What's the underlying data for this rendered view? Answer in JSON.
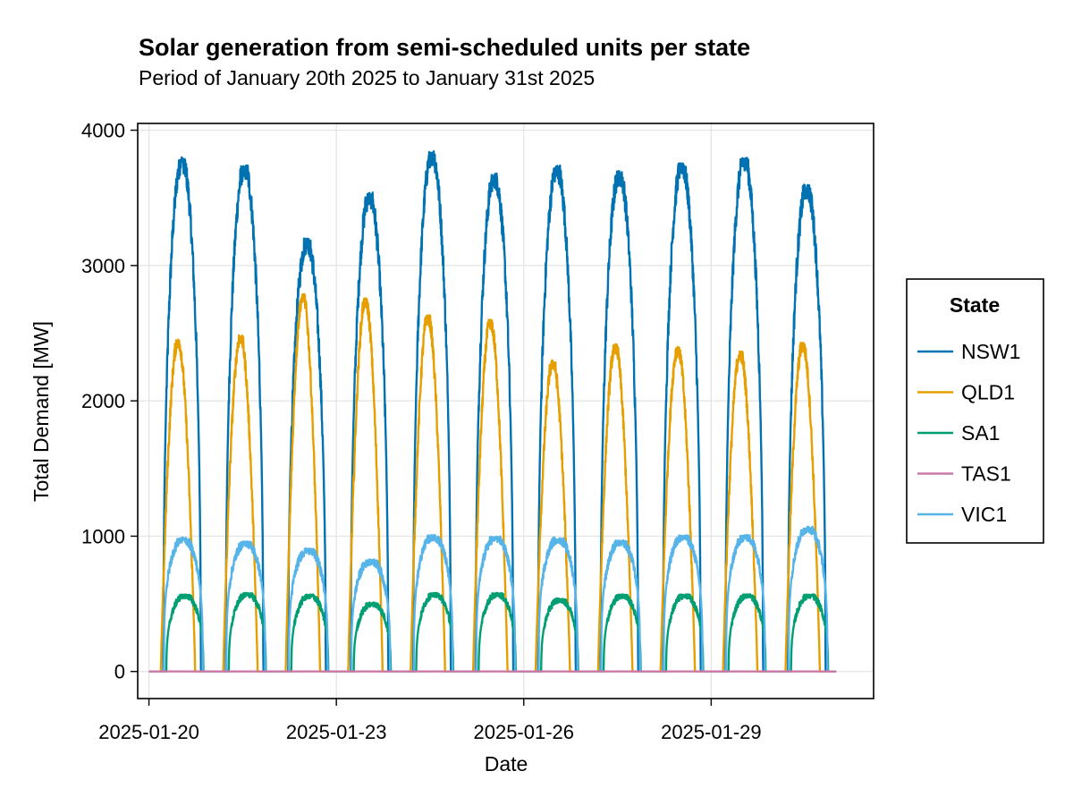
{
  "chart_data": {
    "type": "line",
    "title": "Solar generation from semi-scheduled units per state",
    "subtitle": "Period of January 20th  2025 to January 31st 2025",
    "xlabel": "Date",
    "ylabel": "Total Demand [MW]",
    "x_start": "2025-01-20",
    "x_end": "2025-01-31",
    "xlim_days": [
      -0.18,
      11.6
    ],
    "ylim": [
      -200,
      4050
    ],
    "x_ticks": [
      {
        "day": 0,
        "label": "2025-01-20"
      },
      {
        "day": 3,
        "label": "2025-01-23"
      },
      {
        "day": 6,
        "label": "2025-01-26"
      },
      {
        "day": 9,
        "label": "2025-01-29"
      }
    ],
    "y_ticks": [
      {
        "value": 0,
        "label": "0"
      },
      {
        "value": 1000,
        "label": "1000"
      },
      {
        "value": 2000,
        "label": "2000"
      },
      {
        "value": 3000,
        "label": "3000"
      },
      {
        "value": 4000,
        "label": "4000"
      }
    ],
    "grid": true,
    "legend": {
      "title": "State",
      "position": "right"
    },
    "days": [
      "2025-01-20",
      "2025-01-21",
      "2025-01-22",
      "2025-01-23",
      "2025-01-24",
      "2025-01-25",
      "2025-01-26",
      "2025-01-27",
      "2025-01-28",
      "2025-01-29",
      "2025-01-30"
    ],
    "series": [
      {
        "name": "NSW1",
        "color": "#0072b2",
        "daily_peak_mw": [
          3800,
          3750,
          3200,
          3540,
          3850,
          3680,
          3740,
          3700,
          3760,
          3810,
          3600
        ],
        "noise_mw": 180
      },
      {
        "name": "QLD1",
        "color": "#e69f00",
        "daily_peak_mw": [
          2460,
          2490,
          2790,
          2760,
          2640,
          2600,
          2300,
          2420,
          2400,
          2370,
          2430
        ],
        "noise_mw": 120
      },
      {
        "name": "SA1",
        "color": "#009e73",
        "daily_peak_mw": [
          570,
          580,
          570,
          510,
          580,
          580,
          540,
          570,
          570,
          570,
          570
        ],
        "noise_mw": 50
      },
      {
        "name": "TAS1",
        "color": "#cc79a7",
        "daily_peak_mw": [
          0,
          0,
          0,
          0,
          0,
          0,
          0,
          0,
          0,
          0,
          0
        ],
        "noise_mw": 0
      },
      {
        "name": "VIC1",
        "color": "#56b4e9",
        "daily_peak_mw": [
          990,
          960,
          910,
          830,
          1010,
          1000,
          990,
          970,
          1010,
          1010,
          1070
        ],
        "noise_mw": 70
      }
    ]
  }
}
